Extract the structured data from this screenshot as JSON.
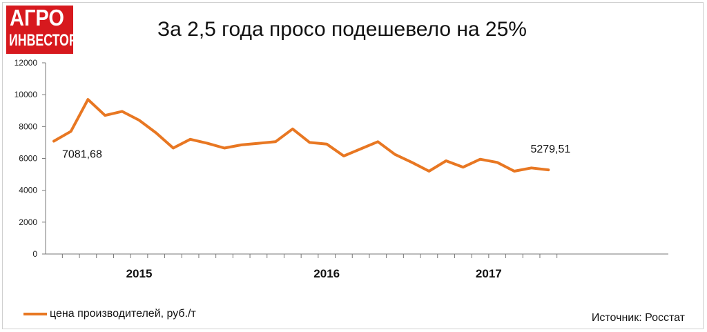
{
  "logo": {
    "line1": "АГРО",
    "line2": "ИНВЕСТОР"
  },
  "title": "За 2,5 года просо подешевело на 25%",
  "legend_label": "цена производителей, руб./т",
  "source": "Источник: Росстат",
  "colors": {
    "line": "#e87722",
    "logo_bg": "#d7191e"
  },
  "chart_data": {
    "type": "line",
    "series": [
      {
        "name": "цена производителей, руб./т",
        "values": [
          7081.68,
          7700,
          9700,
          8700,
          8950,
          8400,
          7600,
          6650,
          7200,
          6950,
          6650,
          6850,
          6950,
          7050,
          7850,
          7000,
          6900,
          6150,
          6600,
          7050,
          6250,
          5750,
          5200,
          5850,
          5450,
          5950,
          5750,
          5200,
          5400,
          5279.51
        ]
      }
    ],
    "ylim": [
      0,
      12000
    ],
    "yticks": [
      0,
      2000,
      4000,
      6000,
      8000,
      10000,
      12000
    ],
    "year_labels": [
      {
        "label": "2015",
        "start": 0,
        "end": 10
      },
      {
        "label": "2016",
        "start": 10,
        "end": 22
      },
      {
        "label": "2017",
        "start": 22,
        "end": 29
      }
    ],
    "data_labels": [
      {
        "index": 0,
        "text": "7081,68"
      },
      {
        "index": 29,
        "text": "5279,51"
      }
    ],
    "grid": false,
    "legend_position": "bottom-left"
  }
}
